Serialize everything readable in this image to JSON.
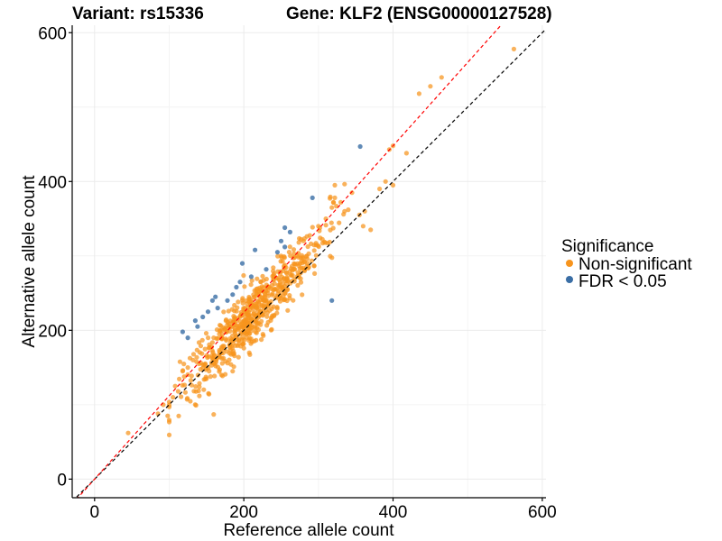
{
  "chart_data": {
    "type": "scatter",
    "title_left": "Variant: rs15336",
    "title_right": "Gene: KLF2 (ENSG00000127528)",
    "xlabel": "Reference allele count",
    "ylabel": "Alternative allele count",
    "xlim": [
      -30,
      605
    ],
    "ylim": [
      -25,
      610
    ],
    "xticks": [
      0,
      200,
      400,
      600
    ],
    "yticks": [
      0,
      200,
      400,
      600
    ],
    "grid": true,
    "legend": {
      "title": "Significance",
      "position": "right",
      "entries": [
        {
          "label": "Non-significant",
          "color": "#f7941d"
        },
        {
          "label": "FDR < 0.05",
          "color": "#3a6ea5"
        }
      ]
    },
    "reference_lines": [
      {
        "name": "identity",
        "slope": 1.0,
        "intercept": 0,
        "color": "#000000",
        "dash": "dashed"
      },
      {
        "name": "fit",
        "slope": 1.12,
        "intercept": 0,
        "color": "#ff0000",
        "dash": "dashed"
      }
    ],
    "generated_cloud": {
      "series": "Non-significant",
      "count": 620,
      "x_center": 215,
      "x_sd": 45,
      "slope": 1.07,
      "intercept": -4,
      "y_sd": 20,
      "seed": 15336
    },
    "series": [
      {
        "name": "Non-significant",
        "color": "#f7941d",
        "points": [
          [
            45,
            62
          ],
          [
            85,
            88
          ],
          [
            92,
            100
          ],
          [
            100,
            97
          ],
          [
            98,
            85
          ],
          [
            105,
            110
          ],
          [
            108,
            125
          ],
          [
            112,
            118
          ],
          [
            118,
            145
          ],
          [
            125,
            150
          ],
          [
            132,
            160
          ],
          [
            140,
            155
          ],
          [
            150,
            135
          ],
          [
            170,
            140
          ],
          [
            185,
            145
          ],
          [
            210,
            240
          ],
          [
            250,
            300
          ],
          [
            268,
            298
          ],
          [
            280,
            320
          ],
          [
            300,
            340
          ],
          [
            310,
            350
          ],
          [
            318,
            365
          ],
          [
            320,
            372
          ],
          [
            322,
            378
          ],
          [
            322,
            395
          ],
          [
            330,
            372
          ],
          [
            335,
            360
          ],
          [
            340,
            362
          ],
          [
            345,
            385
          ],
          [
            355,
            355
          ],
          [
            360,
            340
          ],
          [
            362,
            360
          ],
          [
            370,
            335
          ],
          [
            382,
            390
          ],
          [
            390,
            400
          ],
          [
            400,
            395
          ],
          [
            400,
            448
          ],
          [
            395,
            443
          ],
          [
            418,
            438
          ],
          [
            435,
            518
          ],
          [
            450,
            528
          ],
          [
            465,
            540
          ],
          [
            562,
            578
          ]
        ]
      },
      {
        "name": "FDR < 0.05",
        "color": "#3a6ea5",
        "points": [
          [
            118,
            198
          ],
          [
            125,
            190
          ],
          [
            135,
            213
          ],
          [
            138,
            205
          ],
          [
            145,
            218
          ],
          [
            152,
            225
          ],
          [
            158,
            240
          ],
          [
            162,
            245
          ],
          [
            165,
            230
          ],
          [
            178,
            240
          ],
          [
            185,
            248
          ],
          [
            190,
            258
          ],
          [
            195,
            265
          ],
          [
            210,
            272
          ],
          [
            215,
            308
          ],
          [
            198,
            290
          ],
          [
            230,
            282
          ],
          [
            245,
            305
          ],
          [
            255,
            312
          ],
          [
            250,
            320
          ],
          [
            255,
            338
          ],
          [
            262,
            332
          ],
          [
            292,
            378
          ],
          [
            318,
            240
          ],
          [
            356,
            447
          ]
        ]
      }
    ]
  }
}
